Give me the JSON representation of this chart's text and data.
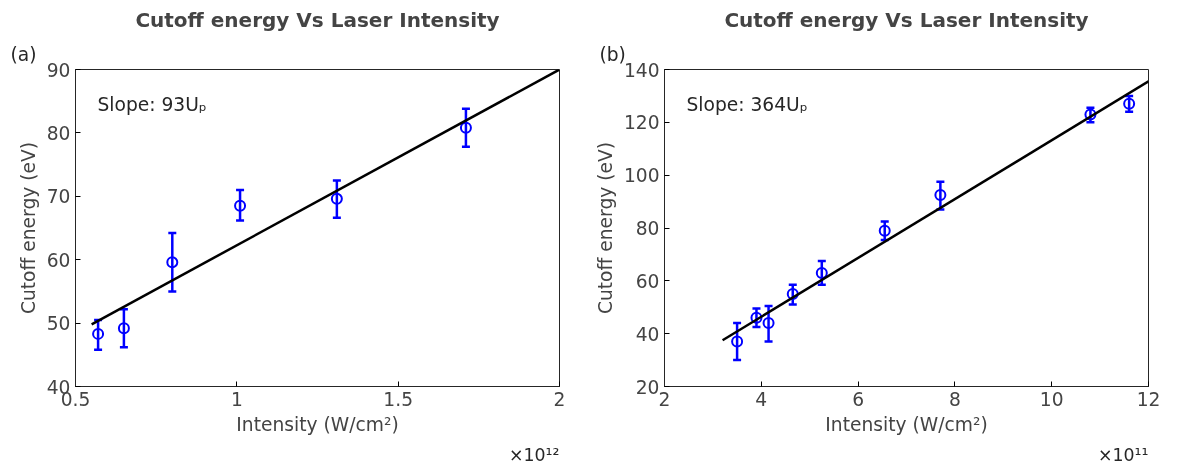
{
  "chart_data": [
    {
      "type": "scatter",
      "title": "Cutoff energy Vs Laser Intensity",
      "xlabel": "Intensity (W/cm²)",
      "ylabel": "Cutoff energy (eV)",
      "annotations": [
        "(a)",
        "Slope: 93Uₚ",
        "×10¹²"
      ],
      "xlim": [
        0.5,
        2
      ],
      "xticks": [
        0.5,
        1,
        1.5,
        2
      ],
      "ylim": [
        40,
        90
      ],
      "yticks": [
        40,
        50,
        60,
        70,
        80,
        90
      ],
      "grid": false,
      "series": [
        {
          "marker": "circle",
          "color": "#0000ff",
          "x": [
            0.57,
            0.65,
            0.8,
            1.01,
            1.31,
            1.71
          ],
          "values": [
            48.3,
            49.2,
            59.6,
            68.5,
            69.6,
            80.8
          ],
          "errors": [
            [
              45.8,
              50.5
            ],
            [
              46.2,
              52.2
            ],
            [
              55,
              64.2
            ],
            [
              66.2,
              71.0
            ],
            [
              66.6,
              72.5
            ],
            [
              77.8,
              83.8
            ]
          ]
        },
        {
          "type": "line",
          "color": "#000000",
          "x": [
            0.55,
            2
          ],
          "values": [
            49.8,
            90
          ]
        }
      ]
    },
    {
      "type": "scatter",
      "title": "Cutoff energy Vs Laser Intensity",
      "xlabel": "Intensity (W/cm²)",
      "ylabel": "Cutoff energy (eV)",
      "annotations": [
        "(b)",
        "Slope: 364Uₚ",
        "×10¹¹"
      ],
      "xlim": [
        2,
        12
      ],
      "xticks": [
        2,
        4,
        6,
        8,
        10,
        12
      ],
      "ylim": [
        20,
        140
      ],
      "yticks": [
        20,
        40,
        60,
        80,
        100,
        120,
        140
      ],
      "grid": false,
      "series": [
        {
          "marker": "circle",
          "color": "#0000ff",
          "x": [
            3.5,
            3.9,
            4.15,
            4.65,
            5.25,
            6.55,
            7.7,
            10.8,
            11.6
          ],
          "values": [
            37,
            46,
            44,
            55,
            63,
            79,
            92.5,
            123,
            127
          ],
          "errors": [
            [
              30,
              44
            ],
            [
              42.5,
              49.5
            ],
            [
              37,
              50.5
            ],
            [
              51,
              58.5
            ],
            [
              58.5,
              67.5
            ],
            [
              75.5,
              82.5
            ],
            [
              87,
              97.5
            ],
            [
              120,
              125.5
            ],
            [
              124,
              130
            ]
          ]
        },
        {
          "type": "line",
          "color": "#000000",
          "x": [
            3.2,
            12
          ],
          "values": [
            37.5,
            135.5
          ]
        }
      ]
    }
  ]
}
